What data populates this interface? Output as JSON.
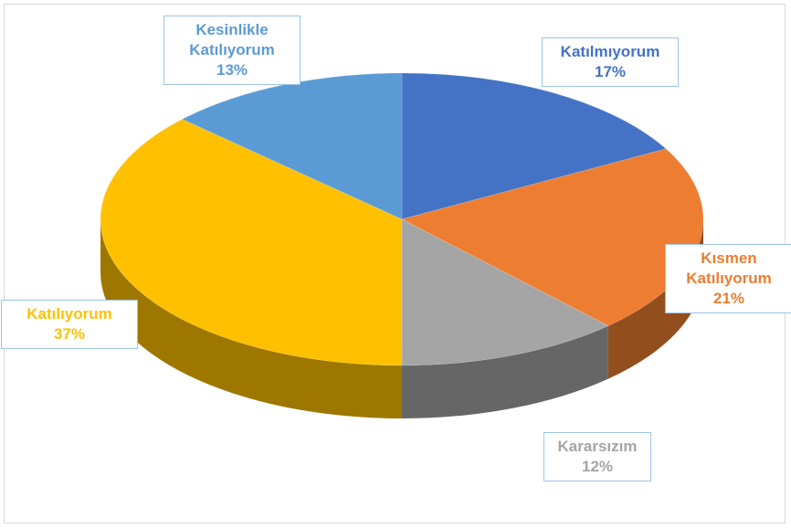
{
  "chart_data": {
    "type": "pie3d",
    "categories": [
      "Katılmıyorum",
      "Kısmen Katılıyorum",
      "Kararsızım",
      "Katılıyorum",
      "Kesinlikle Katılıyorum"
    ],
    "values": [
      17,
      21,
      12,
      37,
      13
    ],
    "value_labels": [
      "17%",
      "21%",
      "12%",
      "37%",
      "13%"
    ],
    "colors": [
      "#4472c4",
      "#ed7d31",
      "#a5a5a5",
      "#ffc000",
      "#5b9bd5"
    ]
  }
}
